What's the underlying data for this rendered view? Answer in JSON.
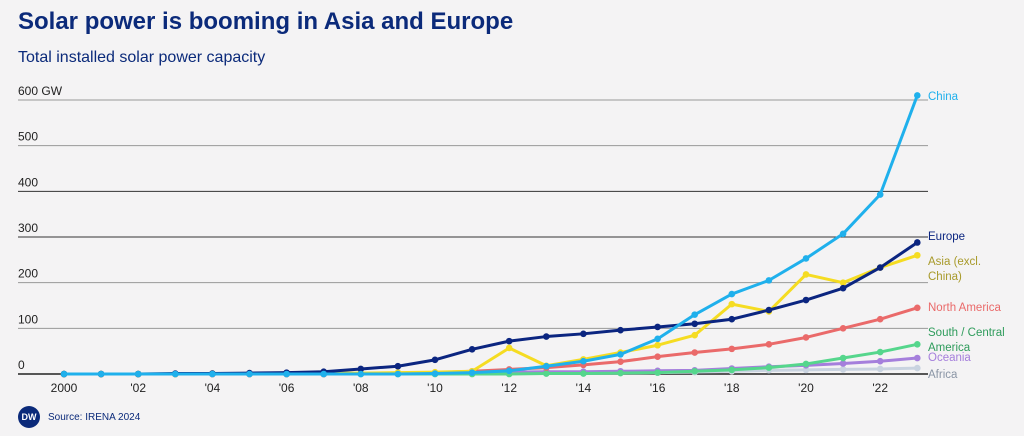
{
  "title": "Solar power is booming in Asia and Europe",
  "subtitle": "Total installed solar power capacity",
  "source": "Source: IRENA 2024",
  "logo": "DW",
  "chart_data": {
    "type": "line",
    "title": "Solar power is booming in Asia and Europe",
    "ylabel": "GW",
    "ylim": [
      0,
      600
    ],
    "y_ticks": [
      "0",
      "100",
      "200",
      "300",
      "400",
      "500",
      "600 GW"
    ],
    "y_tick_values": [
      0,
      100,
      200,
      300,
      400,
      500,
      600
    ],
    "x": [
      2000,
      2001,
      2002,
      2003,
      2004,
      2005,
      2006,
      2007,
      2008,
      2009,
      2010,
      2011,
      2012,
      2013,
      2014,
      2015,
      2016,
      2017,
      2018,
      2019,
      2020,
      2021,
      2022,
      2023
    ],
    "x_ticks": [
      "2000",
      "'02",
      "'04",
      "'06",
      "'08",
      "'10",
      "'12",
      "'14",
      "'16",
      "'18",
      "'20",
      "'22"
    ],
    "x_tick_values": [
      2000,
      2002,
      2004,
      2006,
      2008,
      2010,
      2012,
      2014,
      2016,
      2018,
      2020,
      2022
    ],
    "series": [
      {
        "name": "Africa",
        "label": [
          "Africa"
        ],
        "color": "#c9d3e0",
        "values": [
          0,
          0,
          0,
          0,
          0,
          0,
          0,
          0,
          0,
          0,
          0,
          0,
          1,
          1,
          2,
          2,
          3,
          4,
          6,
          8,
          9,
          10,
          11,
          13
        ]
      },
      {
        "name": "Oceania",
        "label": [
          "Oceania"
        ],
        "color": "#a57fdc",
        "values": [
          0,
          0,
          0,
          0,
          0,
          0,
          0,
          0,
          1,
          1,
          2,
          3,
          4,
          5,
          5,
          6,
          7,
          8,
          12,
          16,
          19,
          23,
          28,
          35
        ]
      },
      {
        "name": "South / Central America",
        "label": [
          "South / Central",
          "America"
        ],
        "color": "#55d68c",
        "values": [
          0,
          0,
          0,
          0,
          0,
          0,
          0,
          0,
          0,
          0,
          0,
          0,
          0,
          1,
          1,
          2,
          3,
          6,
          9,
          14,
          22,
          35,
          48,
          65
        ]
      },
      {
        "name": "North America",
        "label": [
          "North America"
        ],
        "color": "#ea6a6a",
        "values": [
          0,
          0,
          0,
          0,
          0,
          0,
          0,
          0,
          1,
          1,
          3,
          6,
          10,
          14,
          20,
          27,
          38,
          47,
          55,
          65,
          80,
          100,
          120,
          145
        ]
      },
      {
        "name": "Asia (excl. China)",
        "label": [
          "Asia (excl.",
          "China)"
        ],
        "color": "#f5dc22",
        "values": [
          0,
          0,
          0,
          0,
          1,
          1,
          1,
          2,
          2,
          3,
          4,
          6,
          57,
          18,
          32,
          47,
          63,
          85,
          153,
          137,
          218,
          200,
          233,
          260
        ]
      },
      {
        "name": "Europe",
        "label": [
          "Europe"
        ],
        "color": "#0b2580",
        "values": [
          0,
          0,
          0,
          1,
          1,
          2,
          3,
          5,
          11,
          17,
          31,
          54,
          72,
          82,
          88,
          96,
          103,
          110,
          120,
          140,
          162,
          188,
          233,
          288
        ]
      },
      {
        "name": "China",
        "label": [
          "China"
        ],
        "color": "#1fb0ec",
        "values": [
          0,
          0,
          0,
          0,
          0,
          0,
          0,
          0,
          0,
          0,
          1,
          3,
          7,
          17,
          28,
          43,
          77,
          130,
          175,
          205,
          253,
          307,
          393,
          610
        ]
      }
    ]
  }
}
